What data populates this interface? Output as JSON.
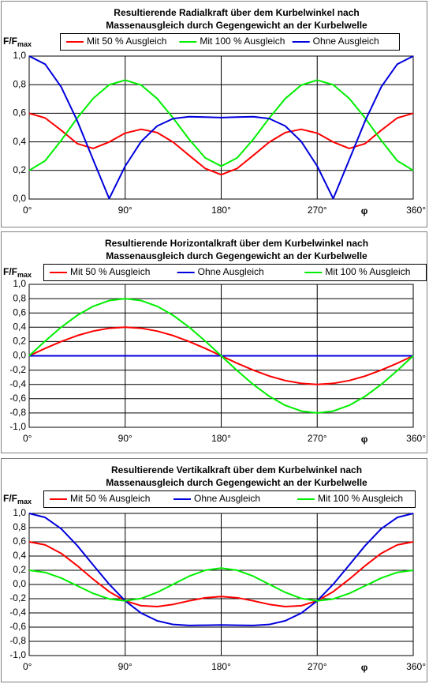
{
  "chart_data": [
    {
      "type": "line",
      "title": [
        "Resultierende Radialkraft über dem Kurbelwinkel nach",
        "Massenausgleich durch Gegengewicht an der Kurbelwelle"
      ],
      "y_label": "F/F",
      "y_label_sub": "max",
      "x_label": "φ",
      "x": [
        0,
        15,
        30,
        45,
        60,
        75,
        90,
        105,
        120,
        135,
        150,
        165,
        180,
        195,
        210,
        225,
        240,
        255,
        270,
        285,
        300,
        315,
        330,
        345,
        360
      ],
      "series": [
        {
          "name": "Mit 50 % Ausgleich",
          "color": "#ff0000",
          "values": [
            0.6,
            0.567,
            0.481,
            0.388,
            0.354,
            0.399,
            0.461,
            0.488,
            0.465,
            0.398,
            0.305,
            0.214,
            0.17,
            0.214,
            0.305,
            0.398,
            0.465,
            0.488,
            0.461,
            0.399,
            0.354,
            0.388,
            0.481,
            0.567,
            0.6
          ]
        },
        {
          "name": "Mit 100 % Ausgleich",
          "color": "#00ee00",
          "values": [
            0.2,
            0.268,
            0.41,
            0.566,
            0.704,
            0.799,
            0.832,
            0.797,
            0.702,
            0.566,
            0.417,
            0.288,
            0.23,
            0.288,
            0.417,
            0.566,
            0.702,
            0.797,
            0.832,
            0.799,
            0.704,
            0.566,
            0.41,
            0.268,
            0.2
          ]
        },
        {
          "name": "Ohne Ausgleich",
          "color": "#0000dd",
          "values": [
            1,
            0.943,
            0.784,
            0.548,
            0.274,
            0.003,
            0.23,
            0.403,
            0.511,
            0.563,
            0.576,
            0.573,
            0.57,
            0.573,
            0.576,
            0.563,
            0.511,
            0.403,
            0.23,
            0.003,
            0.274,
            0.548,
            0.784,
            0.943,
            1
          ]
        }
      ],
      "xlim": [
        0,
        360
      ],
      "xticks": [
        {
          "value": 0,
          "label": "0°"
        },
        {
          "value": 90,
          "label": "90°"
        },
        {
          "value": 180,
          "label": "180°"
        },
        {
          "value": 270,
          "label": "270°"
        },
        {
          "value": 360,
          "label": "360°"
        }
      ],
      "ylim": [
        0,
        1
      ],
      "yticks": [
        {
          "value": 0,
          "label": "0,0"
        },
        {
          "value": 0.2,
          "label": "0,2"
        },
        {
          "value": 0.4,
          "label": "0,4"
        },
        {
          "value": 0.6,
          "label": "0,6"
        },
        {
          "value": 0.8,
          "label": "0,8"
        },
        {
          "value": 1,
          "label": "1,0"
        }
      ],
      "grid": true,
      "legend": "top"
    },
    {
      "type": "line",
      "title": [
        "Resultierende Horizontalkraft über dem Kurbelwinkel nach",
        "Massenausgleich durch Gegengewicht an der Kurbelwelle"
      ],
      "y_label": "F/F",
      "y_label_sub": "max",
      "x_label": "φ",
      "x": [
        0,
        15,
        30,
        45,
        60,
        75,
        90,
        105,
        120,
        135,
        150,
        165,
        180,
        195,
        210,
        225,
        240,
        255,
        270,
        285,
        300,
        315,
        330,
        345,
        360
      ],
      "series": [
        {
          "name": "Mit 50 % Ausgleich",
          "color": "#ff0000",
          "values": [
            0,
            0.104,
            0.2,
            0.283,
            0.346,
            0.386,
            0.4,
            0.386,
            0.346,
            0.283,
            0.2,
            0.104,
            0,
            -0.104,
            -0.2,
            -0.283,
            -0.346,
            -0.386,
            -0.4,
            -0.386,
            -0.346,
            -0.283,
            -0.2,
            -0.104,
            0
          ]
        },
        {
          "name": "Ohne Ausgleich",
          "color": "#0000dd",
          "values": [
            0,
            0,
            0,
            0,
            0,
            0,
            0,
            0,
            0,
            0,
            0,
            0,
            0,
            0,
            0,
            0,
            0,
            0,
            0,
            0,
            0,
            0,
            0,
            0,
            0
          ]
        },
        {
          "name": "Mit 100 % Ausgleich",
          "color": "#00ee00",
          "values": [
            0,
            0.207,
            0.4,
            0.566,
            0.693,
            0.773,
            0.8,
            0.773,
            0.693,
            0.566,
            0.4,
            0.207,
            0,
            -0.207,
            -0.4,
            -0.566,
            -0.693,
            -0.773,
            -0.8,
            -0.773,
            -0.693,
            -0.566,
            -0.4,
            -0.207,
            0
          ]
        }
      ],
      "xlim": [
        0,
        360
      ],
      "xticks": [
        {
          "value": 0,
          "label": "0°"
        },
        {
          "value": 90,
          "label": "90°"
        },
        {
          "value": 180,
          "label": "180°"
        },
        {
          "value": 270,
          "label": "270°"
        },
        {
          "value": 360,
          "label": "360°"
        }
      ],
      "ylim": [
        -1,
        1
      ],
      "yticks": [
        {
          "value": -1,
          "label": "-1,0"
        },
        {
          "value": -0.8,
          "label": "-0,8"
        },
        {
          "value": -0.6,
          "label": "-0,6"
        },
        {
          "value": -0.4,
          "label": "-0,4"
        },
        {
          "value": -0.2,
          "label": "-0,2"
        },
        {
          "value": 0,
          "label": "0,0"
        },
        {
          "value": 0.2,
          "label": "0,2"
        },
        {
          "value": 0.4,
          "label": "0,4"
        },
        {
          "value": 0.6,
          "label": "0,6"
        },
        {
          "value": 0.8,
          "label": "0,8"
        },
        {
          "value": 1,
          "label": "1,0"
        }
      ],
      "grid": true,
      "legend": "top"
    },
    {
      "type": "line",
      "title": [
        "Resultierende Vertikalkraft über dem Kurbelwinkel nach",
        "Massenausgleich durch Gegengewicht an der Kurbelwelle"
      ],
      "y_label": "F/F",
      "y_label_sub": "max",
      "x_label": "φ",
      "x": [
        0,
        15,
        30,
        45,
        60,
        75,
        90,
        105,
        120,
        135,
        150,
        165,
        180,
        195,
        210,
        225,
        240,
        255,
        270,
        285,
        300,
        315,
        330,
        345,
        360
      ],
      "series": [
        {
          "name": "Mit 50 % Ausgleich",
          "color": "#ff0000",
          "values": [
            0.6,
            0.557,
            0.438,
            0.265,
            0.074,
            -0.101,
            -0.23,
            -0.299,
            -0.311,
            -0.28,
            -0.23,
            -0.187,
            -0.17,
            -0.187,
            -0.23,
            -0.28,
            -0.311,
            -0.299,
            -0.23,
            -0.101,
            0.074,
            0.265,
            0.438,
            0.557,
            0.6
          ]
        },
        {
          "name": "Ohne Ausgleich",
          "color": "#0000dd",
          "values": [
            1,
            0.943,
            0.784,
            0.548,
            0.274,
            0.003,
            -0.23,
            -0.403,
            -0.511,
            -0.563,
            -0.576,
            -0.573,
            -0.57,
            -0.573,
            -0.576,
            -0.563,
            -0.511,
            -0.403,
            -0.23,
            0.003,
            0.274,
            0.548,
            0.784,
            0.943,
            1
          ]
        },
        {
          "name": "Mit 100 % Ausgleich",
          "color": "#00ee00",
          "values": [
            0.2,
            0.17,
            0.091,
            -0.018,
            -0.126,
            -0.204,
            -0.23,
            -0.196,
            -0.111,
            0.003,
            0.117,
            0.2,
            0.23,
            0.2,
            0.117,
            0.003,
            -0.111,
            -0.196,
            -0.23,
            -0.204,
            -0.126,
            -0.018,
            0.091,
            0.17,
            0.2
          ]
        }
      ],
      "xlim": [
        0,
        360
      ],
      "xticks": [
        {
          "value": 0,
          "label": "0°"
        },
        {
          "value": 90,
          "label": "90°"
        },
        {
          "value": 180,
          "label": "180°"
        },
        {
          "value": 270,
          "label": "270°"
        },
        {
          "value": 360,
          "label": "360°"
        }
      ],
      "ylim": [
        -1,
        1
      ],
      "yticks": [
        {
          "value": -1,
          "label": "-1,0"
        },
        {
          "value": -0.8,
          "label": "-0,8"
        },
        {
          "value": -0.6,
          "label": "-0,6"
        },
        {
          "value": -0.4,
          "label": "-0,4"
        },
        {
          "value": -0.2,
          "label": "-0,2"
        },
        {
          "value": 0,
          "label": "0,0"
        },
        {
          "value": 0.2,
          "label": "0,2"
        },
        {
          "value": 0.4,
          "label": "0,4"
        },
        {
          "value": 0.6,
          "label": "0,6"
        },
        {
          "value": 0.8,
          "label": "0,8"
        },
        {
          "value": 1,
          "label": "1,0"
        }
      ],
      "grid": true,
      "legend": "top"
    }
  ]
}
